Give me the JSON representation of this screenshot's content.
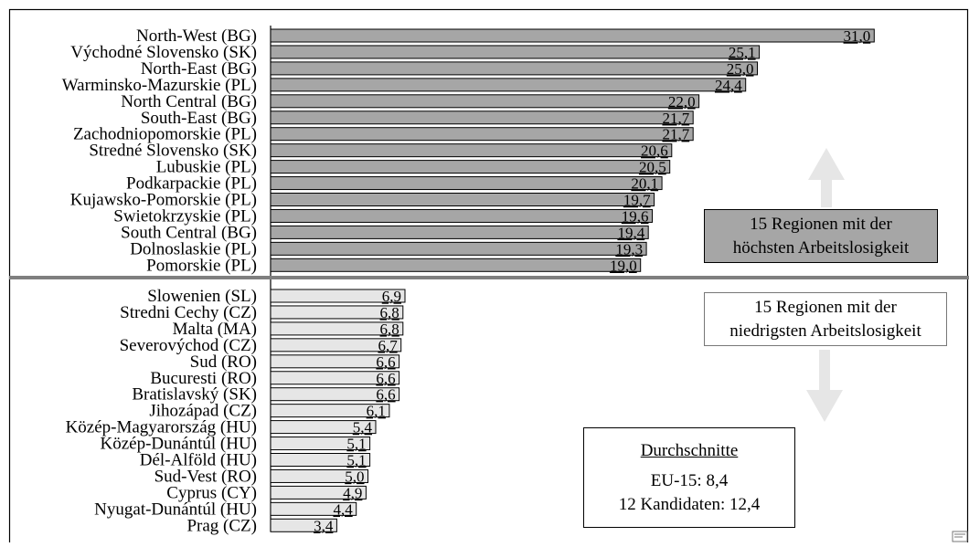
{
  "chart_data": [
    {
      "type": "bar",
      "orientation": "horizontal",
      "categories": [
        "North-West (BG)",
        "Východné Slovensko (SK)",
        "North-East (BG)",
        "Warminsko-Mazurskie (PL)",
        "North Central (BG)",
        "South-East (BG)",
        "Zachodniopomorskie (PL)",
        "Stredné Slovensko (SK)",
        "Lubuskie (PL)",
        "Podkarpackie (PL)",
        "Kujawsko-Pomorskie (PL)",
        "Swietokrzyskie (PL)",
        "South Central (BG)",
        "Dolnoslaskie (PL)",
        "Pomorskie (PL)"
      ],
      "values": [
        31.0,
        25.1,
        25.0,
        24.4,
        22.0,
        21.7,
        21.7,
        20.6,
        20.5,
        20.1,
        19.7,
        19.6,
        19.4,
        19.3,
        19.0
      ],
      "value_labels": [
        "31,0",
        "25,1",
        "25,0",
        "24,4",
        "22,0",
        "21,7",
        "21,7",
        "20,6",
        "20,5",
        "20,1",
        "19,7",
        "19,6",
        "19,4",
        "19,3",
        "19,0"
      ],
      "bar_color": "#a6a6a6"
    },
    {
      "type": "bar",
      "orientation": "horizontal",
      "categories": [
        "Slowenien (SL)",
        "Stredni Cechy (CZ)",
        "Malta (MA)",
        "Severovýchod (CZ)",
        "Sud (RO)",
        "Bucuresti (RO)",
        "Bratislavský (SK)",
        "Jihozápad (CZ)",
        "Közép-Magyarország (HU)",
        "Közép-Dunántúl (HU)",
        "Dél-Alföld (HU)",
        "Sud-Vest (RO)",
        "Cyprus (CY)",
        "Nyugat-Dunántúl (HU)",
        "Prag (CZ)"
      ],
      "values": [
        6.9,
        6.8,
        6.8,
        6.7,
        6.6,
        6.6,
        6.6,
        6.1,
        5.4,
        5.1,
        5.1,
        5.0,
        4.9,
        4.4,
        3.4
      ],
      "value_labels": [
        "6,9",
        "6,8",
        "6,8",
        "6,7",
        "6,6",
        "6,6",
        "6,6",
        "6,1",
        "5,4",
        "5,1",
        "5,1",
        "5,0",
        "4,9",
        "4,4",
        "3,4"
      ],
      "bar_color": "#e6e6e6"
    }
  ],
  "boxes": {
    "high": {
      "line1": "15 Regionen mit der",
      "line2": "höchsten Arbeitslosigkeit"
    },
    "low": {
      "line1": "15 Regionen mit der",
      "line2": "niedrigsten Arbeitslosigkeit"
    }
  },
  "averages": {
    "title": "Durchschnitte",
    "eu15": "EU-15: 8,4",
    "candidates": "12 Kandidaten: 12,4"
  },
  "colors": {
    "high_bar": "#a6a6a6",
    "low_bar": "#e6e6e6",
    "divider": "#7f7f7f",
    "arrow": "#e6e6e6"
  }
}
